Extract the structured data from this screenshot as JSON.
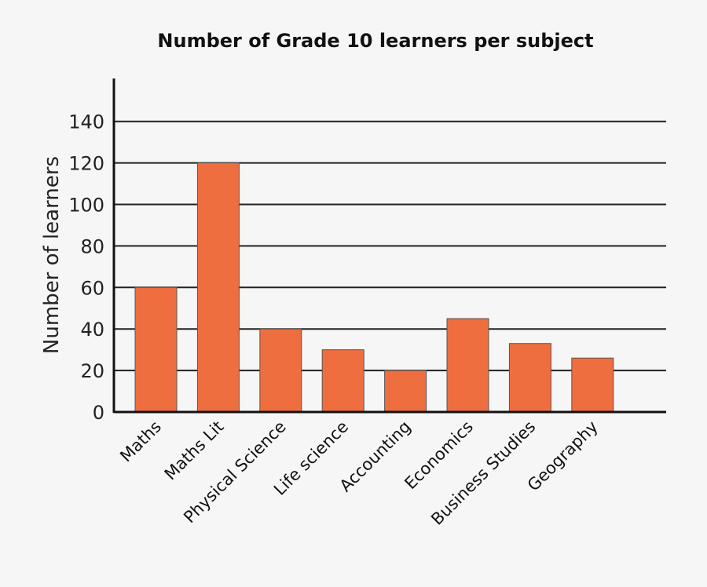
{
  "chart_data": {
    "type": "bar",
    "title": "Number of Grade 10 learners per subject",
    "xlabel": "",
    "ylabel": "Number of learners",
    "categories": [
      "Maths",
      "Maths Lit",
      "Physical Science",
      "Life science",
      "Accounting",
      "Economics",
      "Business Studies",
      "Geography"
    ],
    "values": [
      60,
      120,
      40,
      30,
      20,
      45,
      33,
      26
    ],
    "ylim": [
      0,
      160
    ],
    "yticks": [
      0,
      20,
      40,
      60,
      80,
      100,
      120,
      140
    ],
    "grid": true,
    "legend": null,
    "bar_color": "#EE6E3F",
    "xtick_rotation": -45
  }
}
